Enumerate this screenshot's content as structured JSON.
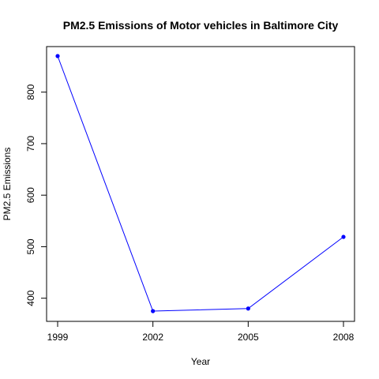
{
  "chart_data": {
    "type": "line",
    "title": "PM2.5 Emissions of Motor vehicles in Baltimore City",
    "xlabel": "Year",
    "ylabel": "PM2.5 Emissions",
    "x": [
      1999,
      2002,
      2005,
      2008
    ],
    "x_ticks": [
      "1999",
      "2002",
      "2005",
      "2008"
    ],
    "y_ticks": [
      "400",
      "500",
      "600",
      "700",
      "800"
    ],
    "xlim": [
      1999,
      2008
    ],
    "ylim": [
      375,
      870
    ],
    "series": [
      {
        "values": [
          870,
          375,
          380,
          519
        ],
        "color": "#0000ff"
      }
    ],
    "grid": false
  }
}
